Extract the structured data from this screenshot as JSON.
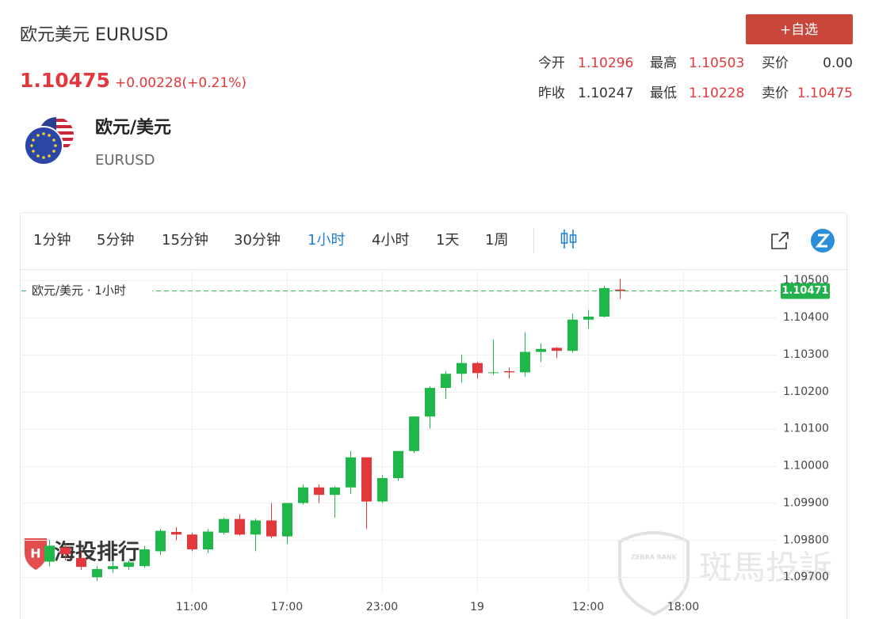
{
  "header": {
    "title": "欧元美元 EURUSD",
    "price": "1.10475",
    "change": "+0.00228(+0.21%)",
    "button": "+自选",
    "stats": [
      [
        {
          "label": "今开",
          "value": "1.10296",
          "tone": "up"
        },
        {
          "label": "最高",
          "value": "1.10503",
          "tone": "up"
        },
        {
          "label": "买价",
          "value": "0.00",
          "tone": "flat"
        }
      ],
      [
        {
          "label": "昨收",
          "value": "1.10247",
          "tone": "flat"
        },
        {
          "label": "最低",
          "value": "1.10228",
          "tone": "up"
        },
        {
          "label": "卖价",
          "value": "1.10475",
          "tone": "up"
        }
      ]
    ]
  },
  "instrument": {
    "name": "欧元/美元",
    "code": "EURUSD"
  },
  "toolbar": {
    "intervals": [
      {
        "label": "1分钟",
        "active": false
      },
      {
        "label": "5分钟",
        "active": false
      },
      {
        "label": "15分钟",
        "active": false
      },
      {
        "label": "30分钟",
        "active": false
      },
      {
        "label": "1小时",
        "active": true
      },
      {
        "label": "4小时",
        "active": false
      },
      {
        "label": "1天",
        "active": false
      },
      {
        "label": "1周",
        "active": false
      }
    ]
  },
  "watermarks": {
    "left": "海投排行",
    "right": "斑馬投訴",
    "badge": "ZEBRA RANK"
  },
  "chart_data": {
    "type": "candlestick",
    "label": "欧元/美元 · 1小时",
    "categories": [
      null,
      null,
      null,
      null,
      null,
      null,
      null,
      null,
      null,
      null,
      "11:00",
      null,
      null,
      null,
      null,
      null,
      "17:00",
      null,
      null,
      null,
      null,
      null,
      "23:00",
      null,
      null,
      null,
      null,
      null,
      "19",
      null,
      null,
      null,
      null,
      null,
      null,
      "12:00",
      null,
      null,
      null,
      null,
      null,
      "18:00",
      null,
      null,
      null,
      null,
      null
    ],
    "open": [
      null,
      1.09742,
      1.0978,
      1.09752,
      1.097,
      1.09722,
      1.09728,
      1.0973,
      1.0977,
      1.09822,
      1.09815,
      1.09775,
      1.0982,
      1.09857,
      1.09815,
      1.09853,
      1.0981,
      1.099,
      1.09942,
      1.09922,
      1.09942,
      1.10023,
      1.09904,
      1.09967,
      1.1004,
      1.10133,
      1.1021,
      1.10248,
      1.10277,
      1.1025,
      1.10255,
      1.10252,
      1.10307,
      1.10318,
      1.1031,
      1.10394,
      1.10402,
      1.10475,
      null,
      null,
      null,
      null,
      null,
      null,
      null,
      null,
      null
    ],
    "high": [
      null,
      1.098,
      1.0979,
      1.0977,
      1.0973,
      1.09745,
      1.09745,
      1.09785,
      1.0983,
      1.09835,
      1.0982,
      1.0983,
      1.0986,
      1.0987,
      1.09858,
      1.099,
      1.099,
      1.0995,
      1.0995,
      1.09945,
      1.1004,
      1.10023,
      1.09975,
      1.1004,
      1.10133,
      1.10215,
      1.10255,
      1.103,
      1.1028,
      1.1034,
      1.10265,
      1.1036,
      1.1033,
      1.1032,
      1.1041,
      1.1042,
      1.10485,
      1.10503,
      null,
      null,
      null,
      null,
      null,
      null,
      null,
      null,
      null
    ],
    "low": [
      null,
      1.0973,
      1.09745,
      1.0972,
      1.0969,
      1.09712,
      1.0972,
      1.09725,
      1.0976,
      1.098,
      1.0977,
      1.09765,
      1.09815,
      1.09812,
      1.0977,
      1.09805,
      1.0979,
      1.09895,
      1.099,
      1.0986,
      1.09925,
      1.0983,
      1.099,
      1.0996,
      1.10035,
      1.101,
      1.1018,
      1.10225,
      1.10235,
      1.10245,
      1.10235,
      1.1024,
      1.1028,
      1.1029,
      1.10305,
      1.1037,
      1.104,
      1.1045,
      null,
      null,
      null,
      null,
      null,
      null,
      null,
      null,
      null
    ],
    "close": [
      null,
      1.09785,
      1.09762,
      1.09728,
      1.09722,
      1.0973,
      1.0974,
      1.09775,
      1.09825,
      1.09815,
      1.09775,
      1.09823,
      1.09857,
      1.09815,
      1.09853,
      1.0981,
      1.099,
      1.09942,
      1.09922,
      1.09942,
      1.10023,
      1.09904,
      1.09967,
      1.1004,
      1.10133,
      1.1021,
      1.10248,
      1.10277,
      1.1025,
      1.10252,
      1.10252,
      1.10307,
      1.10315,
      1.1031,
      1.10394,
      1.10402,
      1.10479,
      1.10471,
      null,
      null,
      null,
      null,
      null,
      null,
      null,
      null,
      null
    ],
    "up_color": "#1fb64a",
    "down_color": "#e2373b",
    "ylim": [
      1.0966,
      1.1053
    ],
    "yticks": [
      {
        "value": 1.097,
        "label": "1.09700"
      },
      {
        "value": 1.098,
        "label": "1.09800"
      },
      {
        "value": 1.099,
        "label": "1.09900"
      },
      {
        "value": 1.1,
        "label": "1.10000"
      },
      {
        "value": 1.101,
        "label": "1.10100"
      },
      {
        "value": 1.102,
        "label": "1.10200"
      },
      {
        "value": 1.103,
        "label": "1.10300"
      },
      {
        "value": 1.104,
        "label": "1.10400"
      },
      {
        "value": 1.105,
        "label": "1.10500"
      }
    ],
    "last_price": {
      "value": 1.10471,
      "label": "1.10471"
    },
    "last_price_color": "#22b14c",
    "grid": true
  }
}
